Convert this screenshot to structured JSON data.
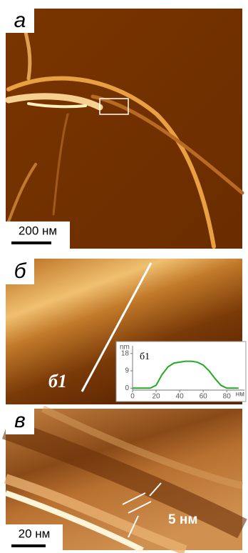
{
  "panels": [
    {
      "label": "а",
      "scale_bar": "200 нм"
    },
    {
      "label": "б",
      "profile_label": "б1",
      "inset": {
        "title": "б1",
        "ylabel": "nm",
        "xlabel": "нм",
        "xlim": [
          0,
          95
        ],
        "ylim": [
          -1,
          22
        ],
        "xticks": [
          0,
          20,
          40,
          60,
          80
        ],
        "yticks": [
          0,
          9,
          18
        ],
        "color": "#22aa22",
        "x": [
          0,
          5,
          10,
          15,
          20,
          25,
          30,
          35,
          40,
          45,
          50,
          55,
          60,
          65,
          70,
          75,
          80,
          85,
          90
        ],
        "y": [
          0,
          0,
          0,
          0,
          1.5,
          7,
          11,
          13,
          13.5,
          14,
          14,
          13.5,
          12,
          9,
          5,
          1.5,
          0,
          0,
          0
        ]
      }
    },
    {
      "label": "в",
      "scale_bar": "20 нм",
      "annotation": "5 нм"
    }
  ]
}
